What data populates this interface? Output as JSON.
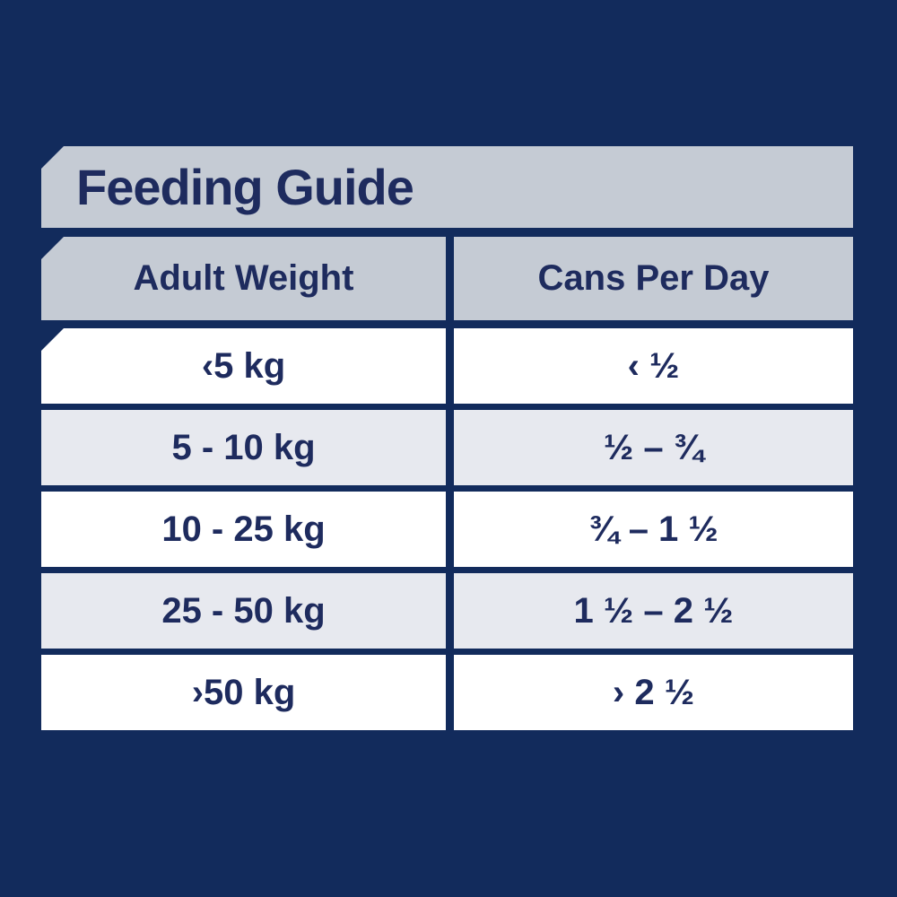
{
  "title": "Feeding Guide",
  "colors": {
    "background_navy": "#122b5c",
    "band_gray": "#c5cbd4",
    "row_light": "#e7e9ef",
    "row_white": "#ffffff",
    "text_navy": "#1e2b5e"
  },
  "table": {
    "columns": [
      "Adult Weight",
      "Cans Per Day"
    ],
    "rows": [
      {
        "weight": "‹5 kg",
        "cans": "‹ ½"
      },
      {
        "weight": "5 - 10 kg",
        "cans": "½ – ¾"
      },
      {
        "weight": "10 - 25 kg",
        "cans": "¾ – 1 ½"
      },
      {
        "weight": "25 - 50 kg",
        "cans": "1 ½ – 2 ½"
      },
      {
        "weight": "›50 kg",
        "cans": "› 2 ½"
      }
    ]
  },
  "chart_data": {
    "type": "table",
    "title": "Feeding Guide",
    "columns": [
      "Adult Weight",
      "Cans Per Day"
    ],
    "rows": [
      [
        "‹5 kg",
        "‹ ½"
      ],
      [
        "5 - 10 kg",
        "½ – ¾"
      ],
      [
        "10 - 25 kg",
        "¾ – 1 ½"
      ],
      [
        "25 - 50 kg",
        "1 ½ – 2 ½"
      ],
      [
        "›50 kg",
        "› 2 ½"
      ]
    ]
  }
}
